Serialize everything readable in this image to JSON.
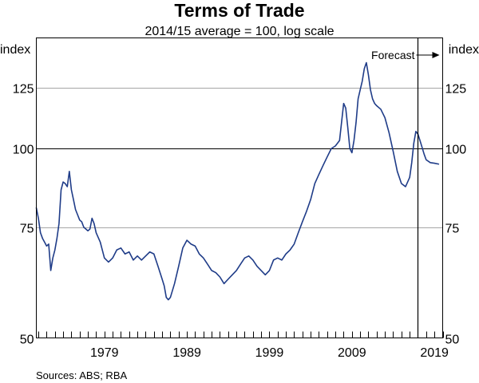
{
  "chart_data": {
    "type": "line",
    "title": "Terms of Trade",
    "subtitle": "2014/15 average = 100, log scale",
    "ylabel_left": "index",
    "ylabel_right": "index",
    "scale": "log",
    "ylim": [
      50,
      150
    ],
    "yticks": [
      50,
      75,
      100,
      125
    ],
    "reference_line": 100,
    "xlim": [
      1970.75,
      2020.0
    ],
    "xticks": [
      1979,
      1989,
      1999,
      2009,
      2019
    ],
    "source": "Sources: ABS; RBA",
    "annotation": {
      "label": "Forecast",
      "year": 2017.0
    },
    "colors": {
      "series": "#1f3c88",
      "grid": "#a6a6a6",
      "axis": "#000000"
    },
    "series": [
      {
        "name": "Terms of Trade",
        "x": [
          1970.75,
          1971.0,
          1971.25,
          1971.5,
          1971.75,
          1972.0,
          1972.25,
          1972.5,
          1972.75,
          1973.0,
          1973.25,
          1973.5,
          1973.75,
          1974.0,
          1974.25,
          1974.5,
          1974.75,
          1975.0,
          1975.25,
          1975.5,
          1975.75,
          1976.0,
          1976.25,
          1976.5,
          1976.75,
          1977.0,
          1977.25,
          1977.5,
          1977.75,
          1978.0,
          1978.5,
          1979.0,
          1979.5,
          1980.0,
          1980.5,
          1981.0,
          1981.5,
          1982.0,
          1982.5,
          1983.0,
          1983.5,
          1984.0,
          1984.5,
          1985.0,
          1985.5,
          1986.0,
          1986.25,
          1986.5,
          1986.75,
          1987.0,
          1987.5,
          1988.0,
          1988.5,
          1989.0,
          1989.25,
          1989.5,
          1990.0,
          1990.5,
          1991.0,
          1991.5,
          1992.0,
          1992.5,
          1993.0,
          1993.5,
          1994.0,
          1994.5,
          1995.0,
          1995.5,
          1996.0,
          1996.5,
          1997.0,
          1997.5,
          1998.0,
          1998.5,
          1999.0,
          1999.5,
          2000.0,
          2000.5,
          2001.0,
          2001.5,
          2002.0,
          2002.5,
          2003.0,
          2003.5,
          2004.0,
          2004.5,
          2005.0,
          2005.5,
          2006.0,
          2006.5,
          2007.0,
          2007.5,
          2008.0,
          2008.25,
          2008.5,
          2008.75,
          2009.0,
          2009.25,
          2009.5,
          2009.75,
          2010.0,
          2010.25,
          2010.5,
          2010.75,
          2011.0,
          2011.25,
          2011.5,
          2011.75,
          2012.0,
          2012.5,
          2013.0,
          2013.5,
          2014.0,
          2014.5,
          2015.0,
          2015.5,
          2016.0,
          2016.25,
          2016.5,
          2016.75,
          2017.0,
          2017.25,
          2017.5,
          2017.75,
          2018.0,
          2018.5,
          2019.0,
          2019.5
        ],
        "values": [
          80.5,
          77.5,
          73.5,
          72.0,
          71.0,
          70.0,
          70.5,
          64.0,
          67.0,
          69.0,
          72.0,
          76.0,
          86.0,
          88.5,
          88.0,
          87.0,
          92.0,
          86.0,
          83.0,
          80.0,
          78.5,
          77.0,
          76.5,
          75.0,
          74.5,
          74.0,
          74.5,
          77.5,
          76.0,
          73.5,
          71.0,
          67.0,
          66.0,
          67.0,
          69.0,
          69.5,
          68.0,
          68.5,
          66.5,
          67.5,
          66.5,
          67.5,
          68.5,
          68.0,
          65.0,
          62.0,
          60.5,
          58.0,
          57.5,
          58.0,
          61.0,
          65.0,
          69.5,
          71.5,
          71.0,
          70.5,
          70.0,
          68.0,
          67.0,
          65.5,
          64.0,
          63.5,
          62.5,
          61.0,
          62.0,
          63.0,
          64.0,
          65.5,
          67.0,
          67.5,
          66.5,
          65.0,
          64.0,
          63.0,
          64.0,
          66.5,
          67.0,
          66.5,
          68.0,
          69.0,
          70.5,
          73.5,
          76.5,
          79.5,
          83.0,
          88.0,
          91.0,
          94.0,
          97.0,
          100.0,
          101.0,
          103.0,
          118.0,
          116.0,
          108.0,
          100.0,
          98.5,
          103.0,
          110.0,
          120.0,
          124.0,
          128.0,
          134.0,
          137.0,
          131.0,
          124.0,
          120.0,
          118.0,
          117.0,
          115.5,
          112.0,
          106.0,
          99.0,
          92.0,
          88.0,
          87.0,
          90.0,
          95.0,
          102.0,
          106.5,
          105.5,
          103.0,
          100.5,
          98.0,
          96.0,
          95.0,
          94.8,
          94.5
        ]
      }
    ]
  }
}
